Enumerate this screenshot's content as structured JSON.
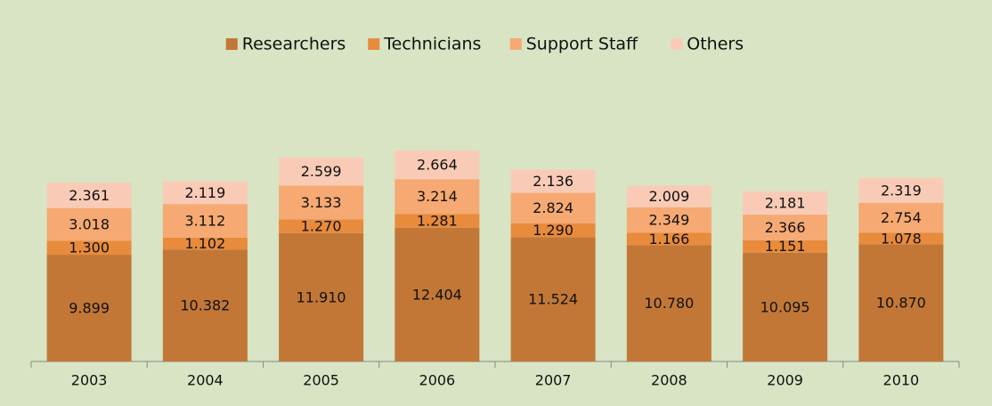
{
  "chart_data": {
    "type": "bar",
    "stacked": true,
    "categories": [
      "2003",
      "2004",
      "2005",
      "2006",
      "2007",
      "2008",
      "2009",
      "2010"
    ],
    "series": [
      {
        "name": "Researchers",
        "color": "#c27737",
        "values": [
          9.899,
          10.382,
          11.91,
          12.404,
          11.524,
          10.78,
          10.095,
          10.87
        ],
        "value_labels": [
          "9.899",
          "10.382",
          "11.910",
          "12.404",
          "11.524",
          "10.780",
          "10.095",
          "10.870"
        ]
      },
      {
        "name": "Technicians",
        "color": "#e88b3c",
        "values": [
          1.3,
          1.102,
          1.27,
          1.281,
          1.29,
          1.166,
          1.151,
          1.078
        ],
        "value_labels": [
          "1.300",
          "1.102",
          "1.270",
          "1.281",
          "1.290",
          "1.166",
          "1.151",
          "1.078"
        ]
      },
      {
        "name": "Support Staff",
        "color": "#f6a972",
        "values": [
          3.018,
          3.112,
          3.133,
          3.214,
          2.824,
          2.349,
          2.366,
          2.754
        ],
        "value_labels": [
          "3.018",
          "3.112",
          "3.133",
          "3.214",
          "2.824",
          "2.349",
          "2.366",
          "2.754"
        ]
      },
      {
        "name": "Others",
        "color": "#f9cbb6",
        "values": [
          2.361,
          2.119,
          2.599,
          2.664,
          2.136,
          2.009,
          2.181,
          2.319
        ],
        "value_labels": [
          "2.361",
          "2.119",
          "2.599",
          "2.664",
          "2.136",
          "2.009",
          "2.181",
          "2.319"
        ]
      }
    ],
    "legend": "top"
  }
}
